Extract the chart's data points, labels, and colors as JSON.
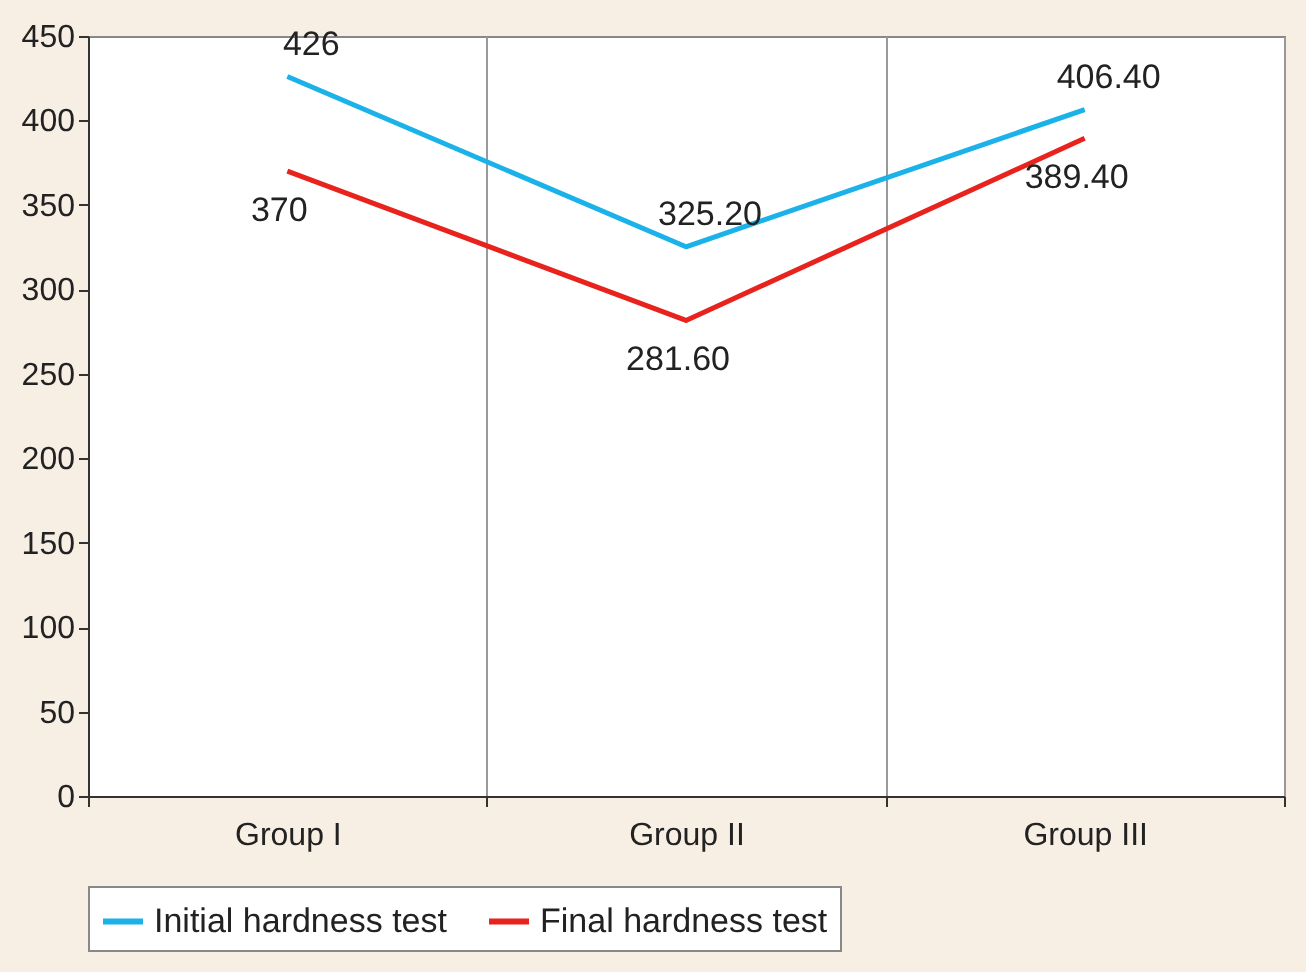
{
  "chart_data": {
    "type": "line",
    "categories": [
      "Group I",
      "Group II",
      "Group III"
    ],
    "series": [
      {
        "name": "Initial hardness test",
        "color": "#1ab2e8",
        "values": [
          426,
          325.2,
          406.4
        ],
        "value_labels": [
          "426",
          "325.20",
          "406.40"
        ]
      },
      {
        "name": "Final hardness test",
        "color": "#e8231e",
        "values": [
          370,
          281.6,
          389.4
        ],
        "value_labels": [
          "370",
          "281.60",
          "389.40"
        ]
      }
    ],
    "ylim": [
      0,
      450
    ],
    "yticks": [
      0,
      50,
      100,
      150,
      200,
      250,
      300,
      350,
      400,
      450
    ],
    "grid": "x",
    "legend": "bottom",
    "marker": "none",
    "line_style": "solid"
  }
}
